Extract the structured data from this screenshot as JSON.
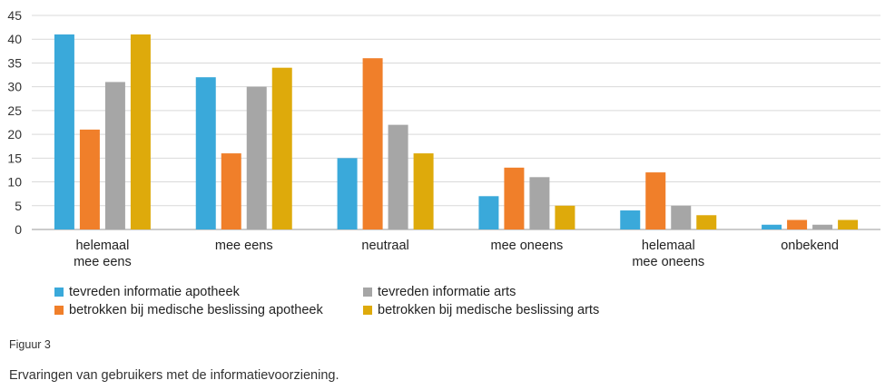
{
  "chart_data": {
    "type": "bar",
    "categories": [
      [
        "helemaal",
        "mee eens"
      ],
      [
        "mee eens"
      ],
      [
        "neutraal"
      ],
      [
        "mee oneens"
      ],
      [
        "helemaal",
        "mee oneens"
      ],
      [
        "onbekend"
      ]
    ],
    "series": [
      {
        "name": "tevreden informatie apotheek",
        "color": "#3aa9da",
        "values": [
          41,
          32,
          15,
          7,
          4,
          1
        ]
      },
      {
        "name": "betrokken bij medische beslissing apotheek",
        "color": "#f07f2a",
        "values": [
          21,
          16,
          36,
          13,
          12,
          2
        ]
      },
      {
        "name": "tevreden informatie arts",
        "color": "#a6a6a6",
        "values": [
          31,
          30,
          22,
          11,
          5,
          1
        ]
      },
      {
        "name": "betrokken bij medische beslissing arts",
        "color": "#deaa0b",
        "values": [
          41,
          34,
          16,
          5,
          3,
          2
        ]
      }
    ],
    "ylim": [
      0,
      45
    ],
    "yticks": [
      0,
      5,
      10,
      15,
      20,
      25,
      30,
      35,
      40,
      45
    ],
    "grid": true,
    "legend_position": "bottom-left",
    "legend_order": [
      0,
      2,
      1,
      3
    ]
  },
  "caption": {
    "figure_label": "Figuur 3",
    "text": "Ervaringen van gebruikers met de informatievoorziening."
  }
}
